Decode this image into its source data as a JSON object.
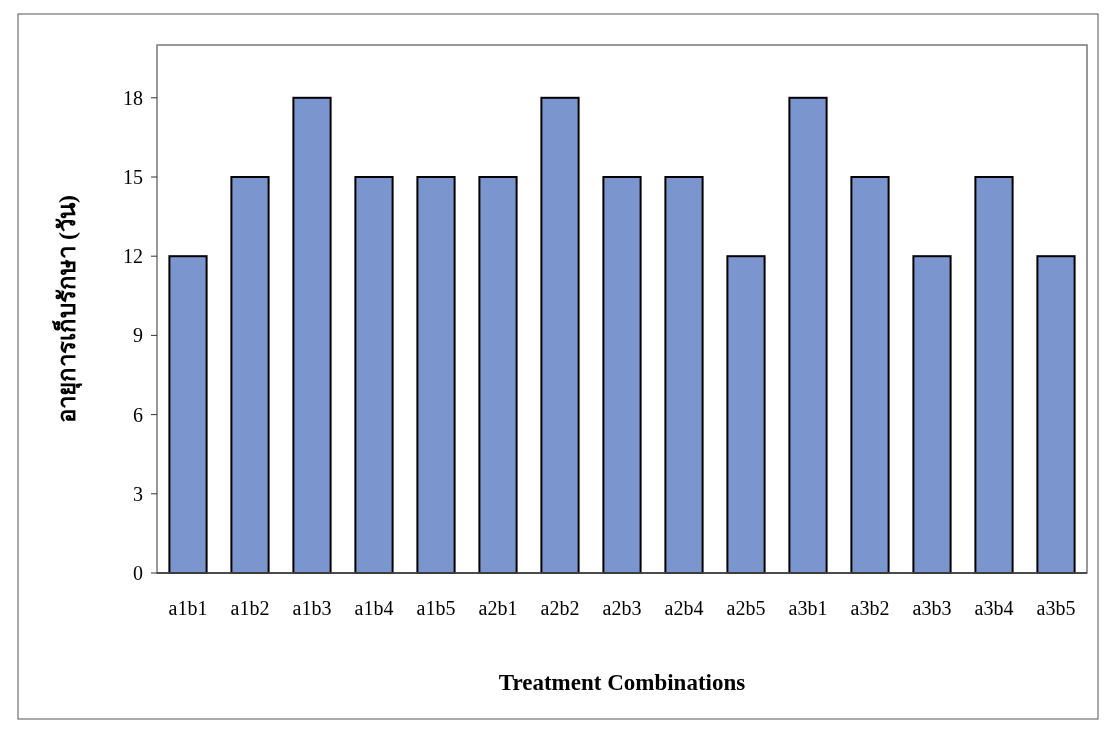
{
  "chart_data": {
    "type": "bar",
    "xlabel": "Treatment Combinations",
    "ylabel": "อายุการเก็บรักษา (วัน)",
    "categories": [
      "a1b1",
      "a1b2",
      "a1b3",
      "a1b4",
      "a1b5",
      "a2b1",
      "a2b2",
      "a2b3",
      "a2b4",
      "a2b5",
      "a3b1",
      "a3b2",
      "a3b3",
      "a3b4",
      "a3b5"
    ],
    "values": [
      12,
      15,
      18,
      15,
      15,
      15,
      18,
      15,
      15,
      12,
      18,
      15,
      12,
      15,
      12
    ],
    "color": "#7b96cf",
    "ylim": [
      0,
      20
    ],
    "yticks": [
      0,
      3,
      6,
      9,
      12,
      15,
      18
    ],
    "grid": false
  }
}
